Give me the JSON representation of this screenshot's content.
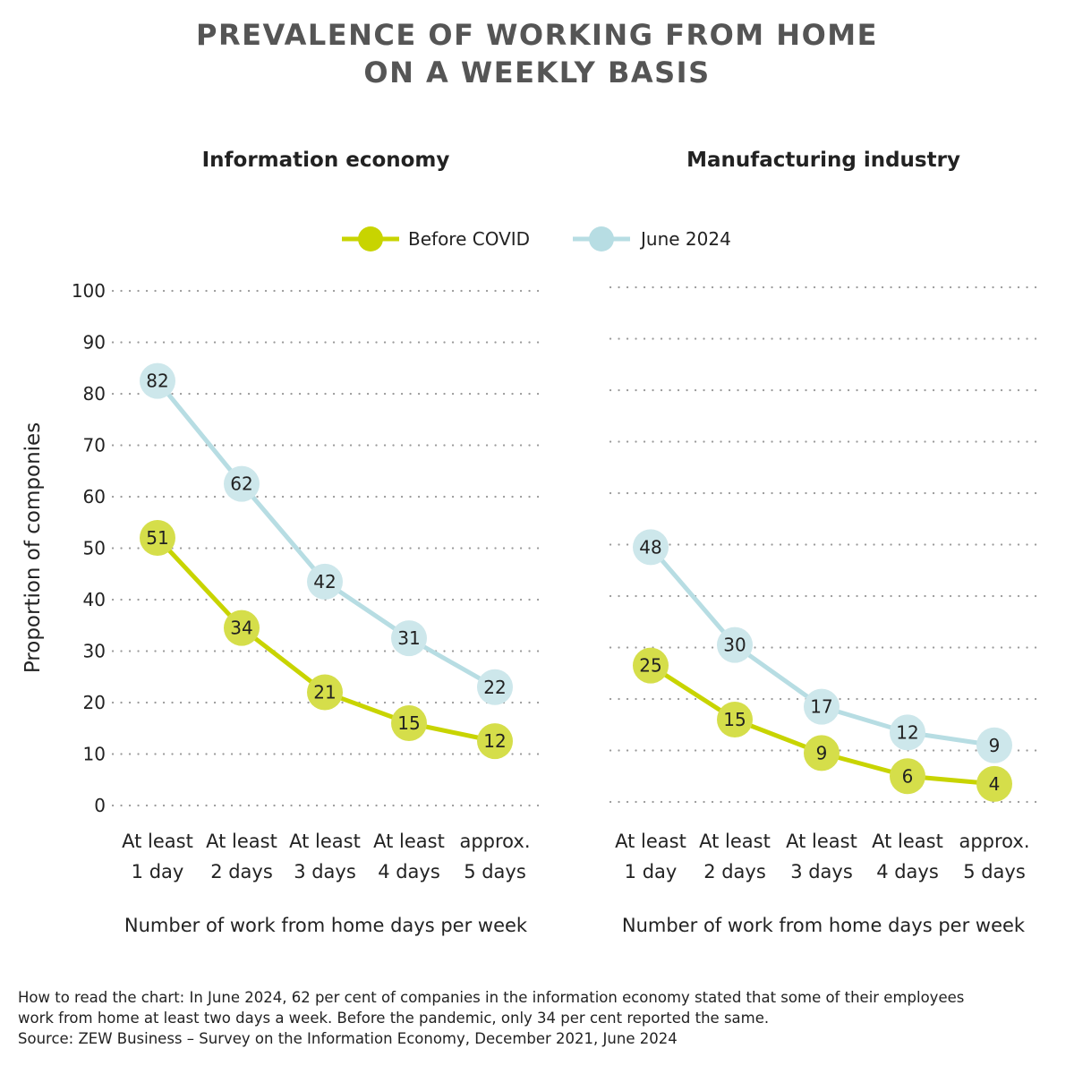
{
  "title": {
    "line1": "PREVALENCE OF WORKING FROM HOME",
    "line2": "ON A WEEKLY BASIS"
  },
  "legend": {
    "before": "Before COVID",
    "june": "June 2024"
  },
  "colors": {
    "before": "#c8d400",
    "before_marker": "#d5de4a",
    "june": "#b7dde3",
    "june_marker": "#cde7eb",
    "grid": "#9a9a9a"
  },
  "ylabel": "Proportion of componies",
  "footnote": {
    "line1": "How to read the chart: In June 2024, 62 per cent of companies in the information economy stated that some of their employees",
    "line2": "work from home at least two days a week. Before the pandemic, only 34 per cent reported the same.",
    "source": "Source: ZEW Business – Survey on the Information Economy, December 2021, June 2024"
  },
  "chart_data": [
    {
      "type": "line",
      "title": "Information economy",
      "xlabel": "Number of work from home days per week",
      "ylabel": "Proportion of componies",
      "ylim": [
        0,
        100
      ],
      "yticks": [
        0,
        10,
        20,
        30,
        40,
        50,
        60,
        70,
        80,
        90,
        100
      ],
      "show_ytick_labels": true,
      "grid": "dotted horizontal",
      "categories": [
        [
          "At least",
          "1 day"
        ],
        [
          "At least",
          "2 days"
        ],
        [
          "At least",
          "3 days"
        ],
        [
          "At least",
          "4 days"
        ],
        [
          "approx.",
          "5 days"
        ]
      ],
      "series": [
        {
          "name": "Before COVID",
          "values": [
            51,
            34,
            21,
            15,
            12
          ],
          "plot_values": [
            52,
            34.5,
            22,
            16,
            12.5
          ]
        },
        {
          "name": "June 2024",
          "values": [
            82,
            62,
            42,
            31,
            22
          ],
          "plot_values": [
            82.5,
            62.5,
            43.5,
            32.5,
            23
          ]
        }
      ]
    },
    {
      "type": "line",
      "title": "Manufacturing industry",
      "xlabel": "Number of work from home days per week",
      "ylim": [
        0,
        100
      ],
      "yticks": [
        0,
        10,
        20,
        30,
        40,
        50,
        60,
        70,
        80,
        90,
        100
      ],
      "show_ytick_labels": false,
      "grid": "dotted horizontal",
      "categories": [
        [
          "At least",
          "1 day"
        ],
        [
          "At least",
          "2 days"
        ],
        [
          "At least",
          "3 days"
        ],
        [
          "At least",
          "4 days"
        ],
        [
          "approx.",
          "5 days"
        ]
      ],
      "series": [
        {
          "name": "Before COVID",
          "values": [
            25,
            15,
            9,
            6,
            4
          ],
          "plot_values": [
            26.5,
            16,
            9.5,
            5,
            3.5
          ]
        },
        {
          "name": "June 2024",
          "values": [
            48,
            30,
            17,
            12,
            9
          ],
          "plot_values": [
            49.5,
            30.5,
            18.5,
            13.5,
            11
          ]
        }
      ]
    }
  ]
}
